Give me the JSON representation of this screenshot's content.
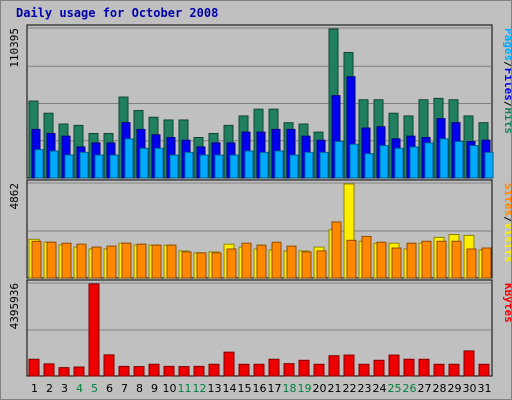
{
  "title": "Daily usage for October 2008",
  "colors": {
    "frame_bg": "#c0c0c0",
    "plot_bg": "#c0c0c0",
    "title": "#0000aa",
    "hits": "#1f7f5f",
    "files": "#0000ee",
    "pages": "#00aaff",
    "visits": "#ffee00",
    "sites": "#ff8800",
    "kbytes": "#ee0000",
    "weekend_label": "#007f3f",
    "weekday_label": "#000000"
  },
  "chart_data": [
    {
      "type": "bar",
      "panel": "top",
      "ylabel_max": "110395",
      "ymax": 110395,
      "legend": [
        {
          "text": "Pages",
          "color": "#00aaff"
        },
        {
          "text": "/",
          "color": "#000000"
        },
        {
          "text": "Files",
          "color": "#0000ee"
        },
        {
          "text": "/",
          "color": "#000000"
        },
        {
          "text": "Hits",
          "color": "#1f7f5f"
        }
      ],
      "series": [
        {
          "name": "Hits",
          "values": [
            57000,
            48000,
            40000,
            39000,
            33000,
            33000,
            60000,
            50000,
            45000,
            43000,
            43000,
            30000,
            33000,
            39000,
            46000,
            51000,
            51000,
            41000,
            40000,
            34000,
            110395,
            93000,
            58000,
            58000,
            48000,
            46000,
            58000,
            59000,
            58000,
            46000,
            41000
          ]
        },
        {
          "name": "Files",
          "values": [
            36000,
            33000,
            31000,
            23000,
            26000,
            26000,
            41000,
            36000,
            32000,
            30000,
            28000,
            23000,
            26000,
            26000,
            34000,
            34000,
            36000,
            36000,
            31000,
            28000,
            61000,
            75000,
            37000,
            38000,
            29000,
            31000,
            30000,
            44000,
            41000,
            27000,
            28000
          ]
        },
        {
          "name": "Pages",
          "values": [
            21000,
            20000,
            17000,
            19000,
            17000,
            17000,
            29000,
            22000,
            22000,
            17000,
            19000,
            17000,
            17000,
            17000,
            20000,
            19000,
            20000,
            17000,
            19000,
            19000,
            27000,
            25000,
            18000,
            24000,
            22000,
            23000,
            26000,
            29000,
            27000,
            24000,
            19000
          ]
        }
      ]
    },
    {
      "type": "bar",
      "panel": "middle",
      "ylabel_max": "4862",
      "ymax": 4862,
      "legend": [
        {
          "text": "Sites",
          "color": "#ff8800"
        },
        {
          "text": "/",
          "color": "#000000"
        },
        {
          "text": "Visits",
          "color": "#ffee00"
        }
      ],
      "series": [
        {
          "name": "Visits",
          "values": [
            2000,
            1850,
            1700,
            1600,
            1500,
            1500,
            1800,
            1700,
            1700,
            1700,
            1400,
            1300,
            1350,
            1750,
            1600,
            1500,
            1450,
            1400,
            1400,
            1600,
            2500,
            4862,
            1900,
            1800,
            1800,
            1500,
            1800,
            2100,
            2250,
            2200,
            1450
          ]
        },
        {
          "name": "Sites",
          "values": [
            1900,
            1850,
            1800,
            1750,
            1600,
            1650,
            1800,
            1750,
            1700,
            1700,
            1350,
            1300,
            1300,
            1500,
            1800,
            1700,
            1850,
            1650,
            1350,
            1400,
            2900,
            1950,
            2150,
            1850,
            1550,
            1800,
            1900,
            1900,
            1900,
            1500,
            1550
          ]
        }
      ]
    },
    {
      "type": "bar",
      "panel": "bottom",
      "ylabel_max": "4395936",
      "ymax": 4395936,
      "legend": [
        {
          "text": "KBytes",
          "color": "#ee0000"
        }
      ],
      "series": [
        {
          "name": "KBytes",
          "values": [
            800000,
            580000,
            400000,
            430000,
            4395936,
            1010000,
            460000,
            450000,
            560000,
            460000,
            450000,
            460000,
            560000,
            1140000,
            560000,
            560000,
            800000,
            590000,
            750000,
            560000,
            970000,
            1000000,
            560000,
            750000,
            1000000,
            800000,
            800000,
            560000,
            560000,
            1200000,
            560000
          ]
        }
      ]
    }
  ],
  "x_labels": [
    "1",
    "2",
    "3",
    "4",
    "5",
    "6",
    "7",
    "8",
    "9",
    "10",
    "11",
    "12",
    "13",
    "14",
    "15",
    "16",
    "17",
    "18",
    "19",
    "20",
    "21",
    "22",
    "23",
    "24",
    "25",
    "26",
    "27",
    "28",
    "29",
    "30",
    "31"
  ],
  "weekend_days": [
    4,
    5,
    11,
    12,
    18,
    19,
    25,
    26
  ]
}
